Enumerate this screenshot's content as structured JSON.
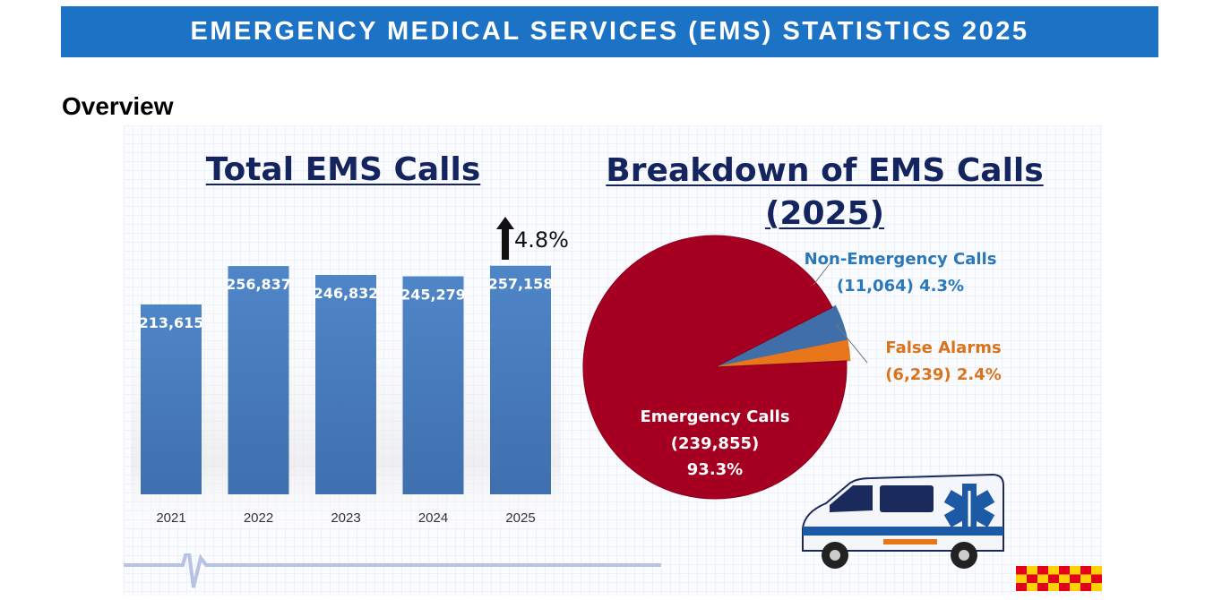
{
  "banner": {
    "title": "EMERGENCY MEDICAL SERVICES (EMS) STATISTICS 2025"
  },
  "section": {
    "title": "Overview"
  },
  "colors": {
    "banner": "#1c72c4",
    "bar": "#4a7fc1",
    "title_text": "#14245e",
    "emergency": "#a50021",
    "non_emergency": "#3f6ea8",
    "false_alarm": "#e8761b",
    "non_emergency_label": "#2a78b8",
    "false_alarm_label": "#d9731c"
  },
  "icons": [
    "up-arrow-icon",
    "ambulance-icon",
    "ekg-line-icon",
    "checker-pattern-icon"
  ],
  "chart_data": [
    {
      "type": "bar",
      "title": "Total EMS Calls",
      "categories": [
        "2021",
        "2022",
        "2023",
        "2024",
        "2025"
      ],
      "values": [
        213615,
        256837,
        246832,
        245279,
        257158
      ],
      "value_labels": [
        "213,615",
        "256,837",
        "246,832",
        "245,279",
        "257,158"
      ],
      "annotation": "4.8%",
      "annotation_direction": "up",
      "ylim": [
        0,
        270000
      ],
      "grid": false
    },
    {
      "type": "pie",
      "title_lines": [
        "Breakdown of EMS Calls",
        "(2025)"
      ],
      "slices": [
        {
          "label_lines": [
            "Emergency Calls",
            "(239,855)",
            "93.3%"
          ],
          "value": 239855,
          "percent": 93.3,
          "color": "#a50021"
        },
        {
          "label_lines": [
            "Non-Emergency Calls",
            "(11,064) 4.3%"
          ],
          "value": 11064,
          "percent": 4.3,
          "color": "#3f6ea8"
        },
        {
          "label_lines": [
            "False Alarms",
            "(6,239) 2.4%"
          ],
          "value": 6239,
          "percent": 2.4,
          "color": "#e8761b"
        }
      ]
    }
  ]
}
